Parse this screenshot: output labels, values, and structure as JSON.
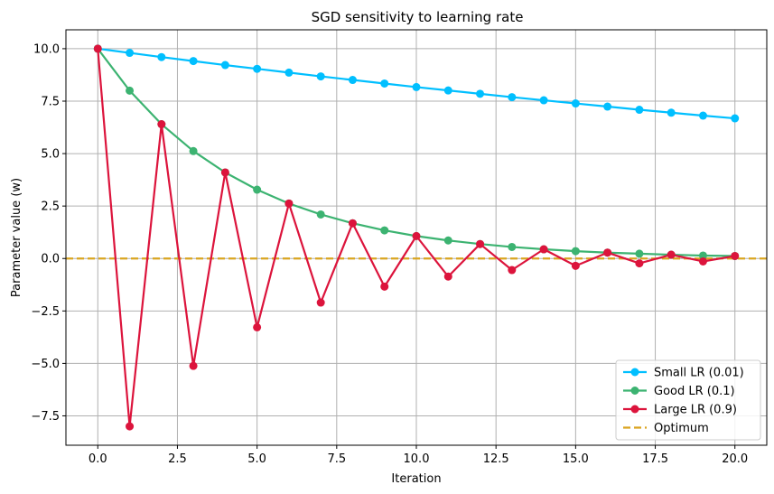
{
  "chart_data": {
    "type": "line",
    "title": "SGD sensitivity to learning rate",
    "xlabel": "Iteration",
    "ylabel": "Parameter value (w)",
    "xlim": [
      -1,
      21
    ],
    "ylim": [
      -8.9,
      10.9
    ],
    "xticks": [
      0.0,
      2.5,
      5.0,
      7.5,
      10.0,
      12.5,
      15.0,
      17.5,
      20.0
    ],
    "xtick_labels": [
      "0.0",
      "2.5",
      "5.0",
      "7.5",
      "10.0",
      "12.5",
      "15.0",
      "17.5",
      "20.0"
    ],
    "yticks": [
      -7.5,
      -5.0,
      -2.5,
      0.0,
      2.5,
      5.0,
      7.5,
      10.0
    ],
    "ytick_labels": [
      "−7.5",
      "−5.0",
      "−2.5",
      "0.0",
      "2.5",
      "5.0",
      "7.5",
      "10.0"
    ],
    "grid": true,
    "legend_position": "bottom-right",
    "x": [
      0,
      1,
      2,
      3,
      4,
      5,
      6,
      7,
      8,
      9,
      10,
      11,
      12,
      13,
      14,
      15,
      16,
      17,
      18,
      19,
      20
    ],
    "series": [
      {
        "name": "Small LR (0.01)",
        "color": "#00bfff",
        "values": [
          10.0,
          9.8,
          9.6,
          9.41,
          9.22,
          9.04,
          8.86,
          8.68,
          8.51,
          8.34,
          8.17,
          8.01,
          7.85,
          7.69,
          7.54,
          7.39,
          7.24,
          7.09,
          6.95,
          6.81,
          6.68
        ]
      },
      {
        "name": "Good LR (0.1)",
        "color": "#3cb371",
        "values": [
          10.0,
          8.0,
          6.4,
          5.12,
          4.1,
          3.28,
          2.62,
          2.1,
          1.68,
          1.34,
          1.07,
          0.86,
          0.69,
          0.55,
          0.44,
          0.35,
          0.28,
          0.23,
          0.18,
          0.14,
          0.12
        ]
      },
      {
        "name": "Large LR (0.9)",
        "color": "#dc143c",
        "values": [
          10.0,
          -8.0,
          6.4,
          -5.12,
          4.1,
          -3.28,
          2.62,
          -2.1,
          1.68,
          -1.34,
          1.07,
          -0.86,
          0.69,
          -0.55,
          0.44,
          -0.35,
          0.28,
          -0.23,
          0.18,
          -0.14,
          0.12
        ]
      }
    ],
    "reference_line": {
      "name": "Optimum",
      "y": 0.0,
      "color": "#daa520",
      "style": "dashed"
    }
  }
}
